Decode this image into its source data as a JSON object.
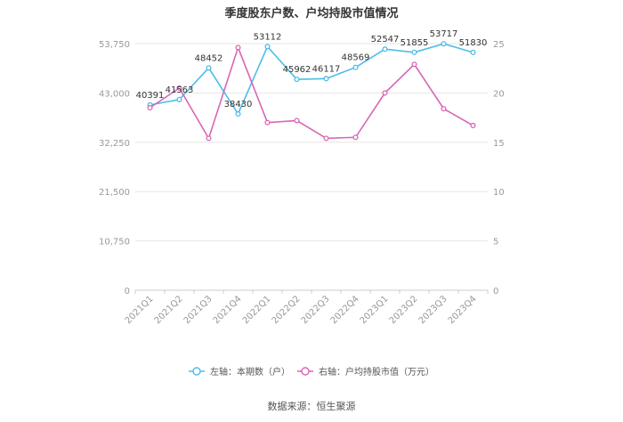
{
  "title": "季度股东户数、户均持股市值情况",
  "source": "数据来源：恒生聚源",
  "colors": {
    "series1": "#4dbde8",
    "series2": "#d966b4",
    "grid": "#e6e6e6",
    "axis": "#cccccc"
  },
  "chart_data": {
    "type": "line",
    "title": "季度股东户数、户均持股市值情况",
    "categories": [
      "2021Q1",
      "2021Q2",
      "2021Q3",
      "2021Q4",
      "2022Q1",
      "2022Q2",
      "2022Q3",
      "2022Q4",
      "2023Q1",
      "2023Q2",
      "2023Q3",
      "2023Q4"
    ],
    "y_left": {
      "ylim": [
        0,
        53750
      ],
      "ticks": [
        "0",
        "10,750",
        "21,500",
        "32,250",
        "43,000",
        "53,750"
      ]
    },
    "y_right": {
      "ylim": [
        0,
        25
      ],
      "ticks": [
        "0",
        "5",
        "10",
        "15",
        "20",
        "25"
      ]
    },
    "series": [
      {
        "name": "左轴：本期数（户）",
        "axis": "left",
        "values": [
          40391,
          41563,
          48452,
          38430,
          53112,
          45962,
          46117,
          48569,
          52547,
          51855,
          53717,
          51830
        ],
        "labels": [
          "40391",
          "41563",
          "48452",
          "38430",
          "53112",
          "45962",
          "46117",
          "48569",
          "52547",
          "51855",
          "53717",
          "51830"
        ]
      },
      {
        "name": "右轴：户均持股市值（万元）",
        "axis": "right",
        "values": [
          18.5,
          20.5,
          15.4,
          24.6,
          17.0,
          17.2,
          15.4,
          15.5,
          20.0,
          22.9,
          18.4,
          16.7
        ]
      }
    ],
    "grid": true,
    "legend": "bottom"
  }
}
